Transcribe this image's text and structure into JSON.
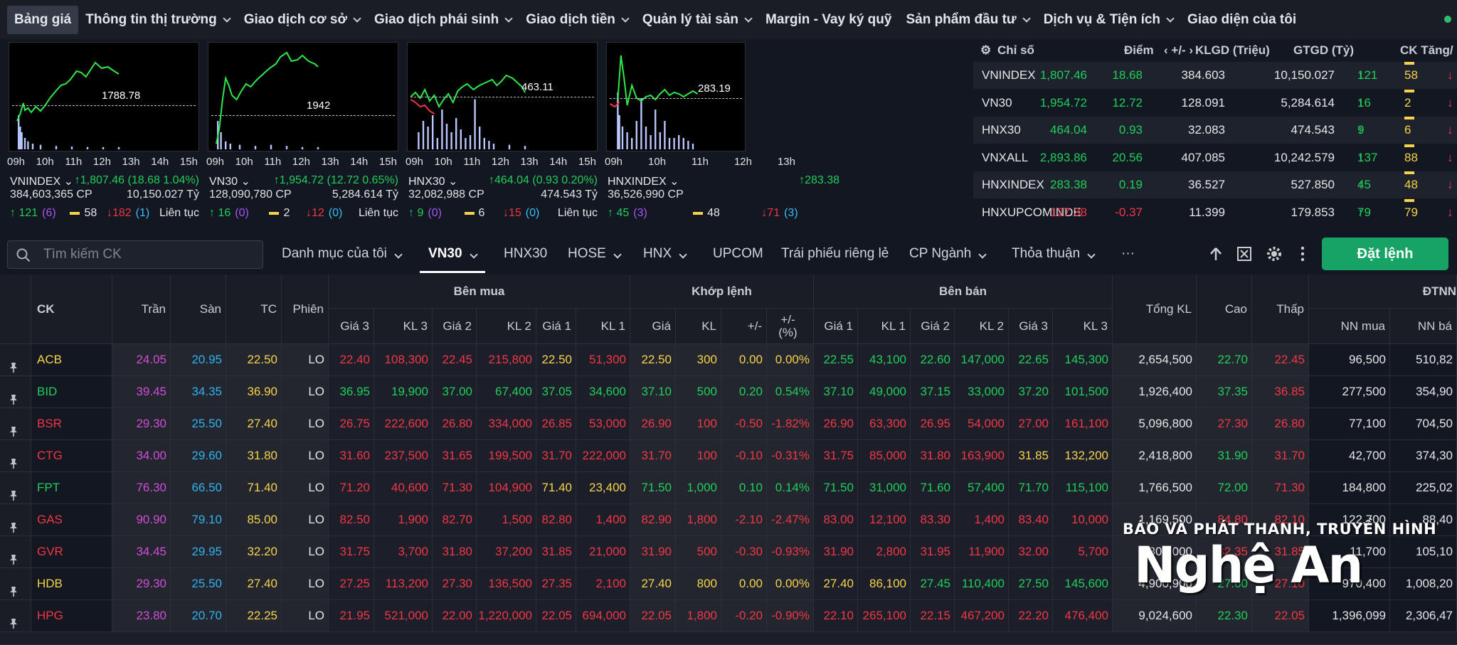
{
  "nav": {
    "items": [
      {
        "label": "Bảng giá",
        "active": true,
        "chevron": false
      },
      {
        "label": "Thông tin thị trường",
        "chevron": true
      },
      {
        "label": "Giao dịch cơ sở",
        "chevron": true
      },
      {
        "label": "Giao dịch phái sinh",
        "chevron": true
      },
      {
        "label": "Giao dịch tiền",
        "chevron": true
      },
      {
        "label": "Quản lý tài sản",
        "chevron": true
      },
      {
        "label": "Margin - Vay ký quỹ",
        "chevron": false
      },
      {
        "label": "Sản phẩm đầu tư",
        "chevron": true
      },
      {
        "label": "Dịch vụ & Tiện ích",
        "chevron": true
      },
      {
        "label": "Giao diện của tôi",
        "chevron": false
      }
    ]
  },
  "mini_charts": [
    {
      "ref_value": "1788.78",
      "name": "VNINDEX",
      "change": "1,807.46 (18.68 1.04%)",
      "volume": "384,603,365 CP",
      "value": "10,150.027 Tỷ",
      "up": "121",
      "up_ceil": "(6)",
      "flat": "58",
      "down": "182",
      "down_floor": "(1)",
      "session": "Liên tục",
      "times": [
        "09h",
        "10h",
        "11h",
        "12h",
        "13h",
        "14h",
        "15h"
      ]
    },
    {
      "ref_value": "1942",
      "name": "VN30",
      "change": "1,954.72 (12.72 0.65%)",
      "volume": "128,090,780 CP",
      "value": "5,284.614 Tỷ",
      "up": "16",
      "up_ceil": "(0)",
      "flat": "2",
      "down": "12",
      "down_floor": "(0)",
      "session": "Liên tục",
      "times": [
        "09h",
        "10h",
        "11h",
        "12h",
        "13h",
        "14h",
        "15h"
      ]
    },
    {
      "ref_value": "463.11",
      "name": "HNX30",
      "change": "464.04 (0.93 0.20%)",
      "volume": "32,082,988 CP",
      "value": "474.543 Tỷ",
      "up": "9",
      "up_ceil": "(0)",
      "flat": "6",
      "down": "15",
      "down_floor": "(0)",
      "session": "Liên tục",
      "times": [
        "09h",
        "10h",
        "11h",
        "12h",
        "13h",
        "14h",
        "15h"
      ]
    },
    {
      "ref_value": "283.19",
      "name": "HNXINDEX",
      "change": "283.38",
      "volume": "36,526,990 CP",
      "value": "",
      "up": "45",
      "up_ceil": "(3)",
      "flat": "48",
      "down": "71",
      "down_floor": "(3)",
      "session": "",
      "times": [
        "09h",
        "10h",
        "11h",
        "12h",
        "13h"
      ]
    }
  ],
  "index_table": {
    "headers": {
      "name": "Chỉ số",
      "point": "Điểm",
      "change": "+/-",
      "volume": "KLGD (Triệu)",
      "value": "GTGD (Tỷ)",
      "ck": "CK Tăng/"
    },
    "rows": [
      {
        "name": "VNINDEX",
        "point": "1,807.46",
        "change": "18.68",
        "volume": "384.603",
        "value": "10,150.027",
        "up": "121",
        "flat": "58",
        "dir": "up"
      },
      {
        "name": "VN30",
        "point": "1,954.72",
        "change": "12.72",
        "volume": "128.091",
        "value": "5,284.614",
        "up": "16",
        "flat": "2",
        "dir": "up"
      },
      {
        "name": "HNX30",
        "point": "464.04",
        "change": "0.93",
        "volume": "32.083",
        "value": "474.543",
        "up": "9",
        "flat": "6",
        "dir": "up"
      },
      {
        "name": "VNXALL",
        "point": "2,893.86",
        "change": "20.56",
        "volume": "407.085",
        "value": "10,242.579",
        "up": "137",
        "flat": "88",
        "dir": "up"
      },
      {
        "name": "HNXINDEX",
        "point": "283.38",
        "change": "0.19",
        "volume": "36.527",
        "value": "527.850",
        "up": "45",
        "flat": "48",
        "dir": "up"
      },
      {
        "name": "HNXUPCOMINDE",
        "point": "127.38",
        "change": "-0.37",
        "volume": "11.399",
        "value": "179.853",
        "up": "79",
        "flat": "79",
        "dir": "dn"
      }
    ]
  },
  "toolbar": {
    "search_placeholder": "Tìm kiếm CK",
    "tabs": [
      {
        "label": "Danh mục của tôi",
        "chevron": true
      },
      {
        "label": "VN30",
        "chevron": true,
        "active": true
      },
      {
        "label": "HNX30",
        "chevron": false
      },
      {
        "label": "HOSE",
        "chevron": true
      },
      {
        "label": "HNX",
        "chevron": true
      },
      {
        "label": "UPCOM",
        "chevron": false
      },
      {
        "label": "Trái phiếu riêng lẻ",
        "chevron": false
      },
      {
        "label": "CP Ngành",
        "chevron": true
      },
      {
        "label": "Thỏa thuận",
        "chevron": true
      },
      {
        "label": "···",
        "chevron": false
      }
    ],
    "order_button": "Đặt lệnh"
  },
  "grid": {
    "groups": {
      "buy": "Bên mua",
      "match": "Khớp lệnh",
      "sell": "Bên bán",
      "foreign": "ĐTNN"
    },
    "columns": {
      "ck": "CK",
      "ceil": "Trần",
      "floor": "Sàn",
      "ref": "TC",
      "session": "Phiên",
      "total": "Tổng KL",
      "high": "Cao",
      "low": "Thấp"
    },
    "sub_buy": [
      "Giá 3",
      "KL 3",
      "Giá 2",
      "KL 2",
      "Giá 1",
      "KL 1"
    ],
    "sub_match": [
      "Giá",
      "KL",
      "+/-",
      "+/-\n(%)"
    ],
    "sub_sell": [
      "Giá 1",
      "KL 1",
      "Giá 2",
      "KL 2",
      "Giá 3",
      "KL 3"
    ],
    "sub_foreign": [
      "NN mua",
      "NN bá"
    ],
    "rows": [
      [
        "ACB",
        "24.05",
        "20.95",
        "22.50",
        "LO",
        "22.40",
        "108,300",
        "22.45",
        "215,800",
        "22.50",
        "51,300",
        "22.50",
        "300",
        "0.00",
        "0.00%",
        "22.55",
        "43,100",
        "22.60",
        "147,000",
        "22.65",
        "145,300",
        "2,654,500",
        "22.70",
        "22.45",
        "96,500",
        "510,82"
      ],
      [
        "BID",
        "39.45",
        "34.35",
        "36.90",
        "LO",
        "36.95",
        "19,900",
        "37.00",
        "67,400",
        "37.05",
        "34,600",
        "37.10",
        "500",
        "0.20",
        "0.54%",
        "37.10",
        "49,000",
        "37.15",
        "33,000",
        "37.20",
        "101,500",
        "1,926,400",
        "37.35",
        "36.85",
        "277,500",
        "354,90"
      ],
      [
        "BSR",
        "29.30",
        "25.50",
        "27.40",
        "LO",
        "26.75",
        "222,600",
        "26.80",
        "334,000",
        "26.85",
        "53,000",
        "26.90",
        "100",
        "-0.50",
        "-1.82%",
        "26.90",
        "63,300",
        "26.95",
        "54,000",
        "27.00",
        "161,100",
        "5,096,800",
        "27.30",
        "26.80",
        "77,100",
        "704,50"
      ],
      [
        "CTG",
        "34.00",
        "29.60",
        "31.80",
        "LO",
        "31.60",
        "237,500",
        "31.65",
        "199,500",
        "31.70",
        "222,000",
        "31.70",
        "100",
        "-0.10",
        "-0.31%",
        "31.75",
        "85,000",
        "31.80",
        "163,900",
        "31.85",
        "132,200",
        "2,418,800",
        "31.90",
        "31.70",
        "42,700",
        "374,30"
      ],
      [
        "FPT",
        "76.30",
        "66.50",
        "71.40",
        "LO",
        "71.20",
        "40,600",
        "71.30",
        "104,900",
        "71.40",
        "23,400",
        "71.50",
        "1,000",
        "0.10",
        "0.14%",
        "71.50",
        "31,000",
        "71.60",
        "57,400",
        "71.70",
        "115,100",
        "1,766,500",
        "72.00",
        "71.30",
        "184,800",
        "225,02"
      ],
      [
        "GAS",
        "90.90",
        "79.10",
        "85.00",
        "LO",
        "82.50",
        "1,900",
        "82.70",
        "1,500",
        "82.80",
        "1,400",
        "82.90",
        "1,800",
        "-2.10",
        "-2.47%",
        "83.00",
        "12,100",
        "83.30",
        "1,400",
        "83.40",
        "10,000",
        "1,169,500",
        "84.80",
        "82.10",
        "122,700",
        "88,40"
      ],
      [
        "GVR",
        "34.45",
        "29.95",
        "32.20",
        "LO",
        "31.75",
        "3,700",
        "31.80",
        "37,200",
        "31.85",
        "21,000",
        "31.90",
        "500",
        "-0.30",
        "-0.93%",
        "31.90",
        "2,800",
        "31.95",
        "11,900",
        "32.00",
        "5,700",
        "803,000",
        "32.35",
        "31.85",
        "11,700",
        "105,10"
      ],
      [
        "HDB",
        "29.30",
        "25.50",
        "27.40",
        "LO",
        "27.25",
        "113,200",
        "27.30",
        "136,500",
        "27.35",
        "2,100",
        "27.40",
        "800",
        "0.00",
        "0.00%",
        "27.40",
        "86,100",
        "27.45",
        "110,400",
        "27.50",
        "145,600",
        "4,900,900",
        "27.60",
        "27.10",
        "970,400",
        "1,008,20"
      ],
      [
        "HPG",
        "23.80",
        "20.70",
        "22.25",
        "LO",
        "21.95",
        "521,000",
        "22.00",
        "1,220,000",
        "22.05",
        "694,000",
        "22.05",
        "1,800",
        "-0.20",
        "-0.90%",
        "22.10",
        "265,100",
        "22.15",
        "467,200",
        "22.20",
        "476,400",
        "9,024,600",
        "22.30",
        "22.05",
        "1,396,099",
        "2,306,47"
      ]
    ],
    "row_colors": [
      [
        "dn",
        "dn",
        "dn",
        "dn",
        "ref",
        "dn",
        "ref",
        "ref",
        "ref",
        "ref",
        "up",
        "up",
        "up",
        "up",
        "up",
        "up",
        "up",
        "up",
        "up",
        "dn"
      ],
      [
        "up",
        "up",
        "up",
        "up",
        "up",
        "up",
        "up",
        "up",
        "up",
        "up",
        "up",
        "up",
        "up",
        "up",
        "up",
        "up",
        "up",
        "up",
        "up",
        "dn"
      ],
      [
        "dn",
        "dn",
        "dn",
        "dn",
        "dn",
        "dn",
        "dn",
        "dn",
        "dn",
        "dn",
        "dn",
        "dn",
        "dn",
        "dn",
        "dn",
        "dn",
        "dn",
        "dn",
        "dn",
        "dn"
      ],
      [
        "dn",
        "dn",
        "dn",
        "dn",
        "dn",
        "dn",
        "dn",
        "dn",
        "dn",
        "dn",
        "dn",
        "dn",
        "dn",
        "dn",
        "ref",
        "ref",
        "up",
        "up",
        "up",
        "dn"
      ],
      [
        "dn",
        "dn",
        "dn",
        "dn",
        "ref",
        "ref",
        "up",
        "up",
        "up",
        "up",
        "up",
        "up",
        "up",
        "up",
        "up",
        "up",
        "up",
        "up",
        "up",
        "dn"
      ],
      [
        "dn",
        "dn",
        "dn",
        "dn",
        "dn",
        "dn",
        "dn",
        "dn",
        "dn",
        "dn",
        "dn",
        "dn",
        "dn",
        "dn",
        "dn",
        "dn",
        "dn",
        "dn",
        "dn",
        "dn"
      ],
      [
        "dn",
        "dn",
        "dn",
        "dn",
        "dn",
        "dn",
        "dn",
        "dn",
        "dn",
        "dn",
        "dn",
        "dn",
        "dn",
        "dn",
        "dn",
        "dn",
        "dn",
        "dn",
        "dn",
        "dn"
      ],
      [
        "dn",
        "dn",
        "dn",
        "dn",
        "dn",
        "dn",
        "ref",
        "ref",
        "ref",
        "ref",
        "ref",
        "ref",
        "up",
        "up",
        "up",
        "up",
        "up",
        "up",
        "up",
        "dn"
      ],
      [
        "dn",
        "dn",
        "dn",
        "dn",
        "dn",
        "dn",
        "dn",
        "dn",
        "dn",
        "dn",
        "dn",
        "dn",
        "dn",
        "dn",
        "dn",
        "dn",
        "dn",
        "dn",
        "up",
        "dn"
      ]
    ]
  },
  "watermark": {
    "line1": "BÁO VÀ PHÁT THANH, TRUYỀN HÌNH",
    "line2": "Nghệ An"
  },
  "colors": {
    "up": "#1fcf5a",
    "down": "#f23645",
    "ref": "#f6d34a",
    "ceil": "#d34bd8",
    "floor": "#2fb2ee",
    "order_button": "#16a365"
  }
}
